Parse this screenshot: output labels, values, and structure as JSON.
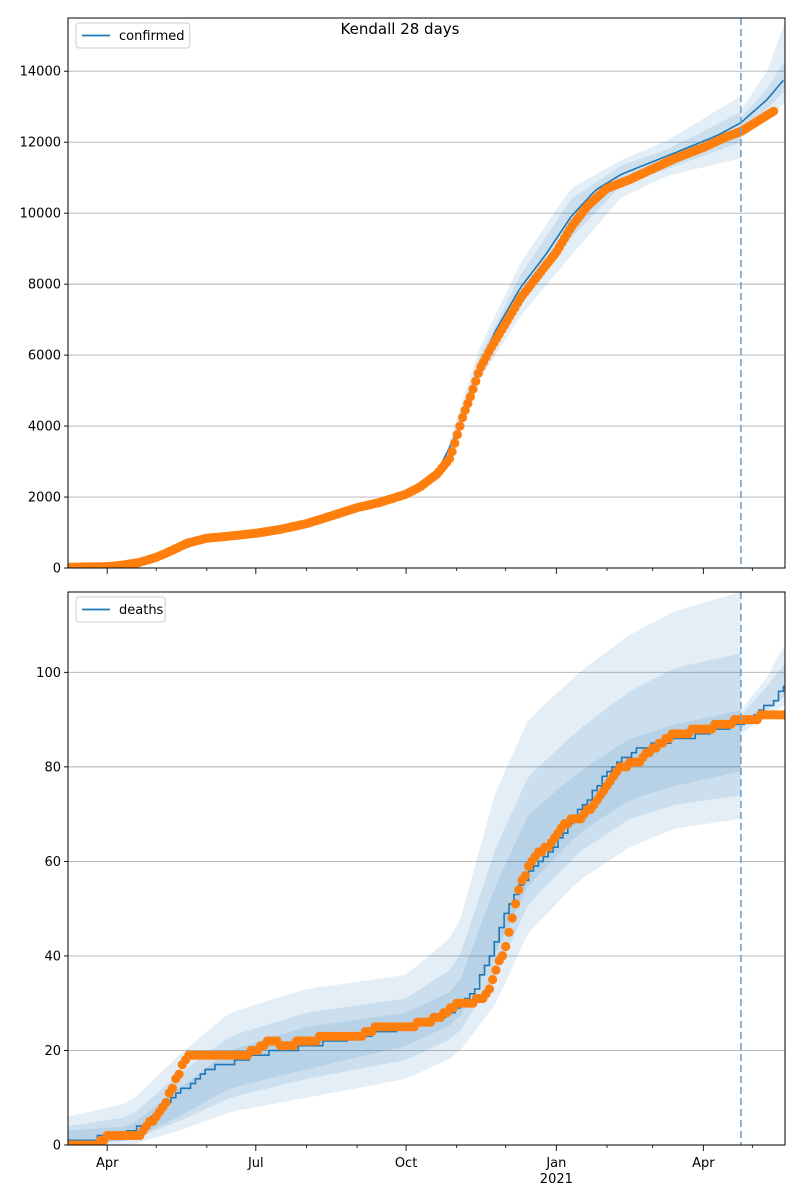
{
  "suptitle": "Kendall 28 days",
  "colors": {
    "line": "#1f77b4",
    "dots": "#ff7f0e",
    "band": "#1f77b4",
    "grid": "#b0b0b0",
    "forecast_line": "#6fa0c8"
  },
  "chart_data": [
    {
      "type": "line",
      "title": "",
      "legend": {
        "label": "confirmed",
        "placement": "top-left"
      },
      "xaxis": {
        "range": [
          "2020-03-08",
          "2021-05-21"
        ],
        "major_ticks": [
          {
            "date": "2020-04-01",
            "label": "Apr"
          },
          {
            "date": "2020-07-01",
            "label": "Jul"
          },
          {
            "date": "2020-10-01",
            "label": "Oct"
          },
          {
            "date": "2021-01-01",
            "label": "Jan",
            "sublabel": "2021"
          },
          {
            "date": "2021-04-01",
            "label": "Apr"
          }
        ],
        "minor_ticks": [
          "2020-05-01",
          "2020-06-01",
          "2020-08-01",
          "2020-09-01",
          "2020-11-01",
          "2020-12-01",
          "2021-02-01",
          "2021-03-01",
          "2021-05-01"
        ]
      },
      "yaxis": {
        "range": [
          0,
          15500
        ],
        "ticks": [
          0,
          2000,
          4000,
          6000,
          8000,
          10000,
          12000,
          14000
        ]
      },
      "grid": "horizontal",
      "forecast_start": "2021-04-24",
      "model": {
        "dates": [
          "2020-03-08",
          "2020-04-01",
          "2020-04-20",
          "2020-05-10",
          "2020-06-01",
          "2020-07-01",
          "2020-08-01",
          "2020-09-01",
          "2020-10-01",
          "2020-10-20",
          "2020-11-01",
          "2020-11-15",
          "2020-11-25",
          "2020-12-10",
          "2020-12-25",
          "2021-01-10",
          "2021-01-25",
          "2021-02-10",
          "2021-03-01",
          "2021-03-20",
          "2021-04-10",
          "2021-04-24",
          "2021-05-10",
          "2021-05-21"
        ],
        "values": [
          30,
          60,
          180,
          420,
          780,
          1020,
          1270,
          1720,
          2120,
          2700,
          3800,
          5700,
          6700,
          7900,
          8800,
          9900,
          10650,
          11100,
          11450,
          11800,
          12200,
          12550,
          13200,
          13800
        ],
        "bands": [
          {
            "dates": [
              "2020-10-25",
              "2020-11-15",
              "2020-12-10",
              "2021-01-10",
              "2021-02-10",
              "2021-03-10",
              "2021-04-24"
            ],
            "lower": [
              2900,
              5300,
              7100,
              8800,
              10450,
              11050,
              11550
            ],
            "upper": [
              3200,
              6200,
              8600,
              10700,
              11500,
              12050,
              13300
            ]
          },
          {
            "dates": [
              "2020-10-25",
              "2020-11-15",
              "2020-12-10",
              "2021-01-10",
              "2021-02-10",
              "2021-03-10",
              "2021-04-24"
            ],
            "lower": [
              3000,
              5500,
              7500,
              9300,
              10800,
              11250,
              12000
            ],
            "upper": [
              3100,
              5950,
              8250,
              10400,
              11350,
              11800,
              12850
            ]
          },
          {
            "dates": [
              "2021-04-24",
              "2021-05-10",
              "2021-05-21"
            ],
            "lower": [
              12100,
              12700,
              13100
            ],
            "upper": [
              12900,
              14000,
              15400
            ]
          },
          {
            "dates": [
              "2021-04-24",
              "2021-05-10",
              "2021-05-21"
            ],
            "lower": [
              12300,
              12950,
              13450
            ],
            "upper": [
              12700,
              13500,
              14300
            ]
          }
        ]
      },
      "observed": {
        "dates": [
          "2020-03-08",
          "2020-03-20",
          "2020-04-01",
          "2020-04-10",
          "2020-04-20",
          "2020-05-01",
          "2020-05-10",
          "2020-05-20",
          "2020-06-01",
          "2020-06-15",
          "2020-07-01",
          "2020-07-15",
          "2020-08-01",
          "2020-08-15",
          "2020-09-01",
          "2020-09-15",
          "2020-10-01",
          "2020-10-10",
          "2020-10-20",
          "2020-10-28",
          "2020-11-01",
          "2020-11-05",
          "2020-11-10",
          "2020-11-15",
          "2020-11-22",
          "2020-12-01",
          "2020-12-10",
          "2020-12-20",
          "2021-01-01",
          "2021-01-10",
          "2021-01-20",
          "2021-02-01",
          "2021-02-15",
          "2021-03-01",
          "2021-03-15",
          "2021-04-01",
          "2021-04-15",
          "2021-04-24",
          "2021-05-01",
          "2021-05-08",
          "2021-05-15"
        ],
        "values": [
          20,
          30,
          40,
          80,
          150,
          300,
          480,
          700,
          840,
          900,
          980,
          1080,
          1250,
          1450,
          1700,
          1850,
          2080,
          2300,
          2650,
          3100,
          3700,
          4300,
          4900,
          5600,
          6200,
          6900,
          7600,
          8200,
          8900,
          9600,
          10200,
          10700,
          10950,
          11250,
          11550,
          11850,
          12150,
          12300,
          12500,
          12700,
          12900
        ]
      }
    },
    {
      "type": "line",
      "title": "",
      "legend": {
        "label": "deaths",
        "placement": "top-left"
      },
      "xaxis": {
        "range": [
          "2020-03-08",
          "2021-05-21"
        ],
        "major_ticks": [
          {
            "date": "2020-04-01",
            "label": "Apr"
          },
          {
            "date": "2020-07-01",
            "label": "Jul"
          },
          {
            "date": "2020-10-01",
            "label": "Oct"
          },
          {
            "date": "2021-01-01",
            "label": "Jan",
            "sublabel": "2021"
          },
          {
            "date": "2021-04-01",
            "label": "Apr"
          }
        ],
        "minor_ticks": [
          "2020-05-01",
          "2020-06-01",
          "2020-08-01",
          "2020-09-01",
          "2020-11-01",
          "2020-12-01",
          "2021-02-01",
          "2021-03-01",
          "2021-05-01"
        ]
      },
      "yaxis": {
        "range": [
          0,
          117
        ],
        "ticks": [
          0,
          20,
          40,
          60,
          80,
          100
        ]
      },
      "grid": "horizontal",
      "forecast_start": "2021-04-24",
      "model": {
        "dates": [
          "2020-03-08",
          "2020-04-10",
          "2020-04-25",
          "2020-05-10",
          "2020-06-01",
          "2020-07-01",
          "2020-08-01",
          "2020-09-01",
          "2020-10-01",
          "2020-10-20",
          "2020-11-01",
          "2020-11-10",
          "2020-11-20",
          "2020-12-01",
          "2020-12-15",
          "2021-01-01",
          "2021-01-15",
          "2021-02-01",
          "2021-02-15",
          "2021-03-01",
          "2021-03-20",
          "2021-04-10",
          "2021-04-24",
          "2021-05-10",
          "2021-05-21"
        ],
        "values": [
          1,
          2,
          5,
          10,
          16,
          19,
          21,
          23,
          25,
          27,
          29,
          32,
          39,
          50,
          58,
          64,
          71,
          79,
          83,
          85,
          86,
          88,
          89,
          93,
          97
        ],
        "steps": true,
        "bands": [
          {
            "dates": [
              "2020-03-08",
              "2020-04-15",
              "2020-05-15",
              "2020-06-15",
              "2020-08-01",
              "2020-10-01",
              "2020-11-01",
              "2020-11-25",
              "2020-12-15",
              "2021-01-15",
              "2021-02-15",
              "2021-03-15",
              "2021-04-24"
            ],
            "lower": [
              0,
              0,
              3,
              7,
              10,
              14,
              19,
              30,
              45,
              56,
              63,
              67,
              69
            ],
            "upper": [
              6,
              9,
              19,
              28,
              33,
              36,
              45,
              75,
              90,
              100,
              108,
              113,
              117
            ]
          },
          {
            "dates": [
              "2020-03-08",
              "2020-04-15",
              "2020-05-15",
              "2020-06-15",
              "2020-08-01",
              "2020-10-01",
              "2020-11-01",
              "2020-11-25",
              "2020-12-15",
              "2021-01-15",
              "2021-02-15",
              "2021-03-15",
              "2021-04-24"
            ],
            "lower": [
              0,
              1,
              5,
              10,
              14,
              18,
              23,
              36,
              51,
              62,
              69,
              72,
              74
            ],
            "upper": [
              4,
              6,
              15,
              23,
              28,
              31,
              38,
              63,
              78,
              88,
              96,
              101,
              104
            ]
          },
          {
            "dates": [
              "2020-03-08",
              "2020-04-15",
              "2020-05-15",
              "2020-06-15",
              "2020-08-01",
              "2020-10-01",
              "2020-11-01",
              "2020-11-25",
              "2020-12-15",
              "2021-01-15",
              "2021-02-15",
              "2021-03-15",
              "2021-04-24"
            ],
            "lower": [
              0,
              1,
              6,
              12,
              16,
              21,
              26,
              41,
              55,
              66,
              73,
              76,
              79
            ],
            "upper": [
              3,
              4,
              12,
              20,
              25,
              28,
              33,
              55,
              70,
              79,
              86,
              89,
              92
            ]
          },
          {
            "dates": [
              "2021-04-24",
              "2021-05-10",
              "2021-05-21"
            ],
            "lower": [
              87,
              91,
              93
            ],
            "upper": [
              92,
              99,
              106
            ]
          },
          {
            "dates": [
              "2021-04-24",
              "2021-05-10",
              "2021-05-21"
            ],
            "lower": [
              88,
              92,
              95
            ],
            "upper": [
              91,
              97,
              102
            ]
          }
        ]
      },
      "observed": {
        "dates": [
          "2020-03-08",
          "2020-03-25",
          "2020-04-01",
          "2020-04-20",
          "2020-04-25",
          "2020-05-01",
          "2020-05-08",
          "2020-05-15",
          "2020-05-20",
          "2020-06-01",
          "2020-06-15",
          "2020-06-25",
          "2020-07-01",
          "2020-07-10",
          "2020-07-20",
          "2020-08-01",
          "2020-08-15",
          "2020-09-01",
          "2020-09-15",
          "2020-10-01",
          "2020-10-15",
          "2020-10-25",
          "2020-11-01",
          "2020-11-10",
          "2020-11-15",
          "2020-11-20",
          "2020-11-25",
          "2020-12-01",
          "2020-12-10",
          "2020-12-20",
          "2020-12-28",
          "2021-01-05",
          "2021-01-15",
          "2021-01-25",
          "2021-02-01",
          "2021-02-10",
          "2021-02-20",
          "2021-03-01",
          "2021-03-15",
          "2021-04-01",
          "2021-04-24",
          "2021-05-01",
          "2021-05-10",
          "2021-05-20"
        ],
        "values": [
          0,
          0,
          2,
          2,
          4,
          6,
          10,
          15,
          19,
          19,
          19,
          19,
          20,
          22,
          21,
          22,
          23,
          23,
          25,
          25,
          26,
          28,
          30,
          30,
          31,
          32,
          37,
          42,
          55,
          62,
          63,
          68,
          69,
          72,
          76,
          80,
          81,
          84,
          87,
          88,
          90,
          90,
          91,
          91
        ]
      }
    }
  ]
}
